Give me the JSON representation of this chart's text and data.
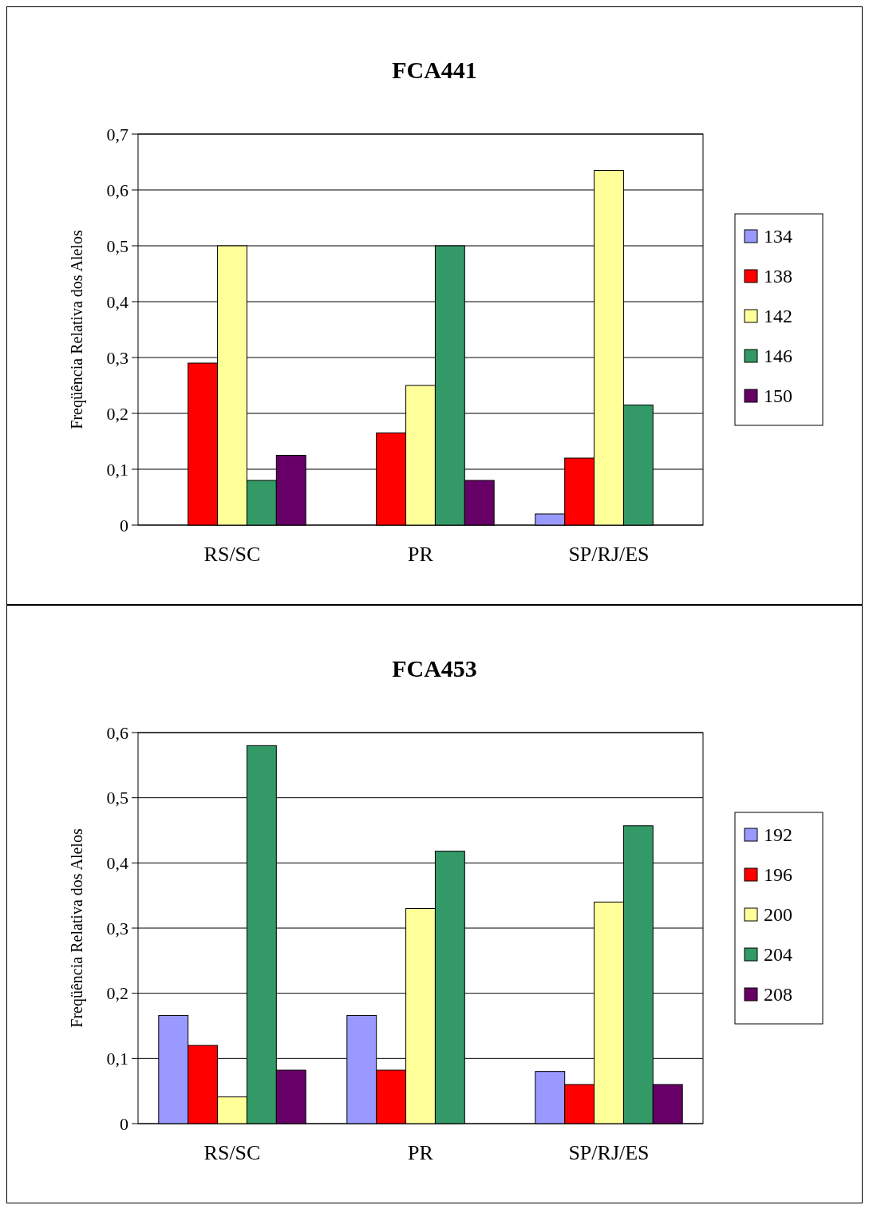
{
  "chart_data": [
    {
      "type": "bar",
      "title": "FCA441",
      "ylabel": "Freqüência Relativa dos Alelos",
      "categories": [
        "RS/SC",
        "PR",
        "SP/RJ/ES"
      ],
      "ylim": [
        0,
        0.7
      ],
      "yticks": [
        {
          "value": 0,
          "label": "0"
        },
        {
          "value": 0.1,
          "label": "0,1"
        },
        {
          "value": 0.2,
          "label": "0,2"
        },
        {
          "value": 0.3,
          "label": "0,3"
        },
        {
          "value": 0.4,
          "label": "0,4"
        },
        {
          "value": 0.5,
          "label": "0,5"
        },
        {
          "value": 0.6,
          "label": "0,6"
        },
        {
          "value": 0.7,
          "label": "0,7"
        }
      ],
      "grid": "y",
      "legend": "right",
      "series": [
        {
          "name": "134",
          "color": "#9999ff",
          "values": [
            0,
            0,
            0.02
          ]
        },
        {
          "name": "138",
          "color": "#ff0000",
          "values": [
            0.29,
            0.165,
            0.12
          ]
        },
        {
          "name": "142",
          "color": "#ffff99",
          "values": [
            0.5,
            0.25,
            0.635
          ]
        },
        {
          "name": "146",
          "color": "#339966",
          "values": [
            0.08,
            0.5,
            0.215
          ]
        },
        {
          "name": "150",
          "color": "#660066",
          "values": [
            0.125,
            0.08,
            0
          ]
        }
      ]
    },
    {
      "type": "bar",
      "title": "FCA453",
      "ylabel": "Freqüência Relativa dos Alelos",
      "categories": [
        "RS/SC",
        "PR",
        "SP/RJ/ES"
      ],
      "ylim": [
        0,
        0.6
      ],
      "yticks": [
        {
          "value": 0,
          "label": "0"
        },
        {
          "value": 0.1,
          "label": "0,1"
        },
        {
          "value": 0.2,
          "label": "0,2"
        },
        {
          "value": 0.3,
          "label": "0,3"
        },
        {
          "value": 0.4,
          "label": "0,4"
        },
        {
          "value": 0.5,
          "label": "0,5"
        },
        {
          "value": 0.6,
          "label": "0,6"
        }
      ],
      "grid": "y",
      "legend": "right",
      "series": [
        {
          "name": "192",
          "color": "#9999ff",
          "values": [
            0.166,
            0.166,
            0.08
          ]
        },
        {
          "name": "196",
          "color": "#ff0000",
          "values": [
            0.12,
            0.082,
            0.06
          ]
        },
        {
          "name": "200",
          "color": "#ffff99",
          "values": [
            0.041,
            0.33,
            0.34
          ]
        },
        {
          "name": "204",
          "color": "#339966",
          "values": [
            0.58,
            0.418,
            0.457
          ]
        },
        {
          "name": "208",
          "color": "#660066",
          "values": [
            0.082,
            0,
            0.06
          ]
        }
      ]
    }
  ]
}
